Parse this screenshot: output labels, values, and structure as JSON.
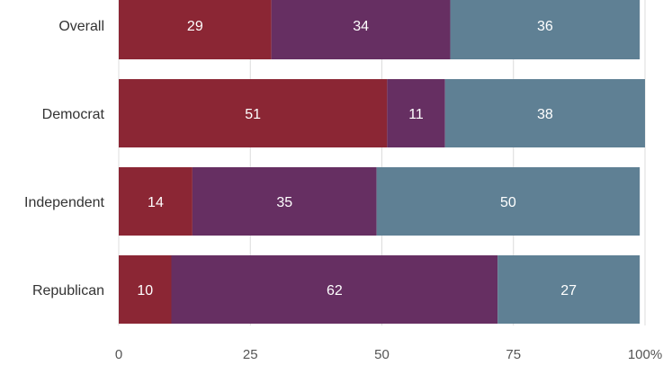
{
  "chart_data": {
    "type": "bar",
    "orientation": "horizontal",
    "stacked": true,
    "categories": [
      "Overall",
      "Democrat",
      "Independent",
      "Republican"
    ],
    "series": [
      {
        "values": [
          29,
          51,
          14,
          10
        ],
        "color": "#8b2634"
      },
      {
        "values": [
          34,
          11,
          35,
          62
        ],
        "color": "#662f62"
      },
      {
        "values": [
          36,
          38,
          50,
          27
        ],
        "color": "#5f8094"
      }
    ],
    "x_ticks": [
      "0",
      "25",
      "50",
      "75",
      "100%"
    ],
    "xlim": [
      0,
      100
    ],
    "grid": true,
    "legend": "none"
  }
}
